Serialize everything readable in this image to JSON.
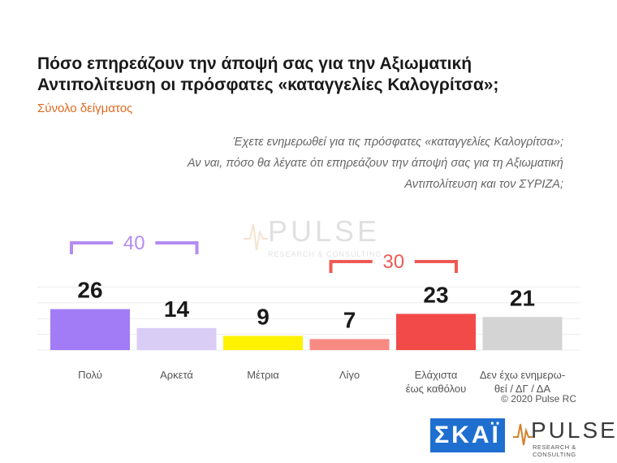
{
  "title": "Πόσο επηρεάζουν την άποψή σας για την Αξιωματική Αντιπολίτευση οι πρόσφατες «καταγγελίες Καλογρίτσα»;",
  "subtitle": "Σύνολο δείγματος",
  "question_lines": [
    "Έχετε ενημερωθεί για τις πρόσφατες «καταγγελίες Καλογρίτσα»;",
    "Αν ναι, πόσο θα λέγατε ότι επηρεάζουν την άποψή σας για τη Αξιωματική",
    "Αντιπολίτευση και τον ΣΥΡΙΖΑ;"
  ],
  "copyright": "© 2020 Pulse RC",
  "logos": {
    "skai": "ΣΚΑΪ",
    "pulse_word": "PULSE",
    "pulse_sub": "RESEARCH & CONSULTING"
  },
  "chart_data": {
    "type": "bar",
    "categories": [
      "Πολύ",
      "Αρκετά",
      "Μέτρια",
      "Λίγο",
      "Ελάχιστα έως καθόλου",
      "Δεν έχω ενημερω-θεί / ΔΓ / ΔΑ"
    ],
    "category_lines": [
      [
        "Πολύ"
      ],
      [
        "Αρκετά"
      ],
      [
        "Μέτρια"
      ],
      [
        "Λίγο"
      ],
      [
        "Ελάχιστα",
        "έως καθόλου"
      ],
      [
        "Δεν έχω ενημερω-",
        "θεί / ΔΓ / ΔΑ"
      ]
    ],
    "values": [
      26,
      14,
      9,
      7,
      23,
      21
    ],
    "colors": [
      "#a27cf6",
      "#d9cdf6",
      "#fff200",
      "#f88a84",
      "#f24a48",
      "#d4d4d4"
    ],
    "ylim": [
      0,
      40
    ],
    "grid": true,
    "brackets": [
      {
        "from": 0,
        "to": 1,
        "value": "40",
        "color": "#b48cf2"
      },
      {
        "from": 3,
        "to": 4,
        "value": "30",
        "color": "#ee5a55"
      }
    ]
  }
}
